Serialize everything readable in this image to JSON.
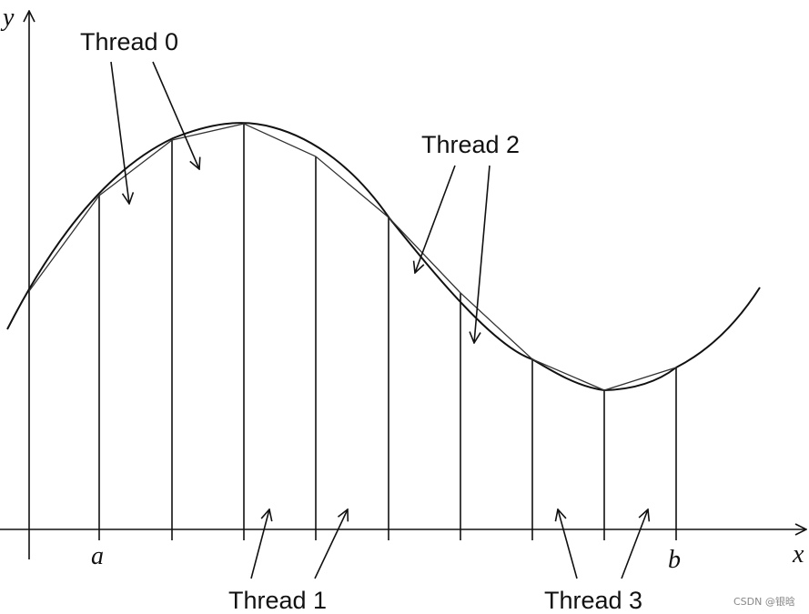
{
  "axes": {
    "x_label": "x",
    "y_label": "y",
    "a_label": "a",
    "b_label": "b"
  },
  "threads": [
    {
      "label": "Thread 0"
    },
    {
      "label": "Thread 1"
    },
    {
      "label": "Thread 2"
    },
    {
      "label": "Thread 3"
    }
  ],
  "watermark": "CSDN @银晗"
}
